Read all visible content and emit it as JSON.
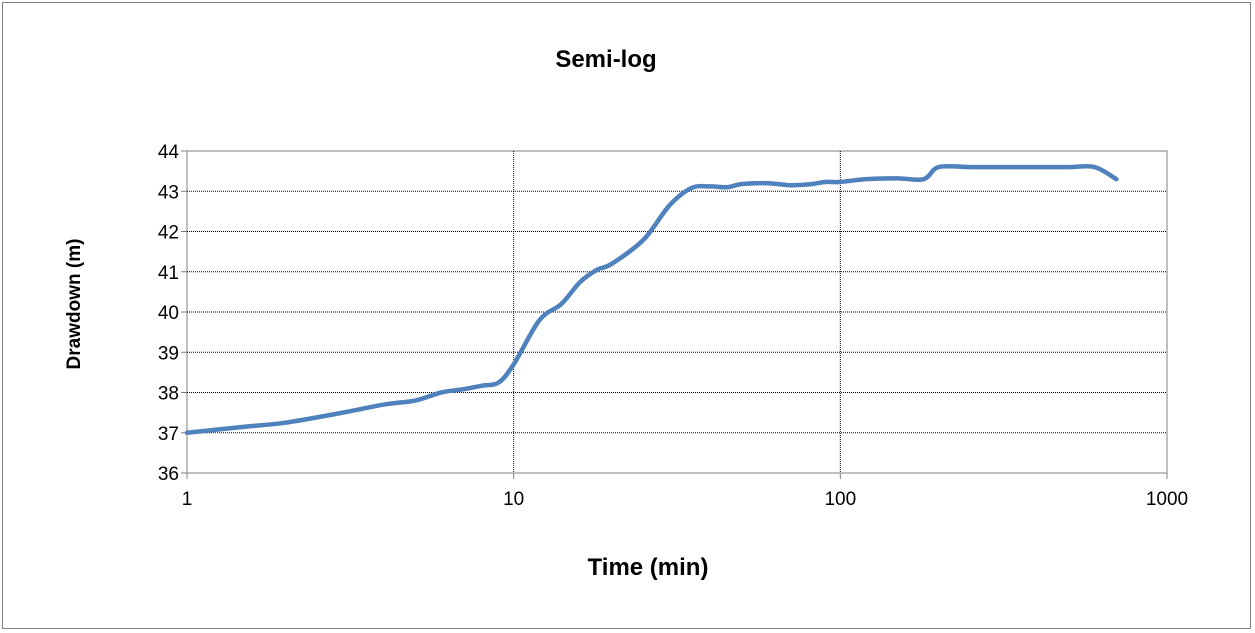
{
  "chart_data": {
    "type": "line",
    "title": "Semi-log",
    "xlabel": "Time (min)",
    "ylabel": "Drawdown (m)",
    "x_scale": "log",
    "xlim": [
      1,
      1000
    ],
    "ylim": [
      36,
      44
    ],
    "x_ticks": [
      1,
      10,
      100,
      1000
    ],
    "y_ticks": [
      36,
      37,
      38,
      39,
      40,
      41,
      42,
      43,
      44
    ],
    "grid": true,
    "legend": "none",
    "series": [
      {
        "color": "#4f81bd",
        "points": [
          [
            1,
            37.0
          ],
          [
            1.5,
            37.15
          ],
          [
            2,
            37.25
          ],
          [
            3,
            37.5
          ],
          [
            4,
            37.7
          ],
          [
            5,
            37.8
          ],
          [
            6,
            38.0
          ],
          [
            7,
            38.08
          ],
          [
            8,
            38.17
          ],
          [
            9,
            38.25
          ],
          [
            10,
            38.7
          ],
          [
            12,
            39.8
          ],
          [
            14,
            40.2
          ],
          [
            16,
            40.75
          ],
          [
            18,
            41.05
          ],
          [
            20,
            41.2
          ],
          [
            25,
            41.8
          ],
          [
            30,
            42.65
          ],
          [
            35,
            43.08
          ],
          [
            40,
            43.12
          ],
          [
            45,
            43.1
          ],
          [
            50,
            43.18
          ],
          [
            60,
            43.2
          ],
          [
            70,
            43.15
          ],
          [
            80,
            43.17
          ],
          [
            90,
            43.23
          ],
          [
            100,
            43.23
          ],
          [
            120,
            43.3
          ],
          [
            150,
            43.32
          ],
          [
            180,
            43.3
          ],
          [
            200,
            43.6
          ],
          [
            250,
            43.6
          ],
          [
            300,
            43.6
          ],
          [
            400,
            43.6
          ],
          [
            500,
            43.6
          ],
          [
            600,
            43.6
          ],
          [
            700,
            43.3
          ]
        ]
      }
    ]
  }
}
